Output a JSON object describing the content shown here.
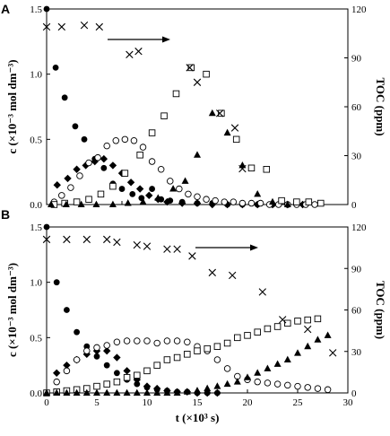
{
  "chart_data": [
    {
      "type": "scatter",
      "panel_label": "A",
      "xlim": [
        0,
        20
      ],
      "ylim": [
        0,
        1.5
      ],
      "y2lim": [
        0,
        120
      ],
      "yticks": [
        "0.0",
        "0.5",
        "1.0",
        "1.5"
      ],
      "y2ticks": [
        "0",
        "30",
        "60",
        "90",
        "120"
      ],
      "ylabel": "c (×10⁻³ mol dm⁻³)",
      "y2label": "TOC (ppm)",
      "series": [
        {
          "marker": "filled-circle",
          "axis": "left",
          "x": [
            0,
            0.6,
            1.2,
            1.9,
            2.5,
            3.2,
            3.8,
            4.4,
            5.0,
            5.7,
            6.3,
            7.0,
            7.6,
            8.2,
            9.0,
            10.0,
            11.0,
            12.0,
            13.0,
            14.0,
            15.0,
            16.0
          ],
          "y": [
            1.5,
            1.05,
            0.82,
            0.6,
            0.5,
            0.35,
            0.28,
            0.16,
            0.12,
            0.08,
            0.05,
            0.12,
            0.04,
            0.03,
            0.02,
            0.01,
            0.01,
            0,
            0,
            0,
            0,
            0
          ]
        },
        {
          "marker": "filled-diamond",
          "axis": "left",
          "x": [
            0.7,
            1.4,
            2.0,
            2.6,
            3.2,
            3.8,
            4.4,
            5.0,
            5.6,
            6.2,
            6.8,
            7.4,
            8.0,
            9.0,
            10.0,
            11.0,
            12.0,
            13.0,
            14.0,
            15.0,
            16.0,
            17.0
          ],
          "y": [
            0.15,
            0.2,
            0.27,
            0.3,
            0.33,
            0.35,
            0.3,
            0.24,
            0.17,
            0.12,
            0.07,
            0.04,
            0.02,
            0.01,
            0.01,
            0,
            0,
            0,
            0,
            0,
            0,
            0
          ]
        },
        {
          "marker": "open-circle",
          "axis": "left",
          "x": [
            0.5,
            1.0,
            1.6,
            2.2,
            2.8,
            3.4,
            4.0,
            4.6,
            5.2,
            5.8,
            6.4,
            7.0,
            7.6,
            8.2,
            8.8,
            9.4,
            10.0,
            10.6,
            11.2,
            11.8,
            12.4,
            13.0,
            13.6,
            14.2,
            14.8,
            15.4,
            16.0,
            16.6,
            17.2,
            17.8
          ],
          "y": [
            0.02,
            0.07,
            0.13,
            0.22,
            0.32,
            0.36,
            0.45,
            0.49,
            0.5,
            0.49,
            0.44,
            0.33,
            0.27,
            0.18,
            0.12,
            0.08,
            0.06,
            0.04,
            0.03,
            0.02,
            0.02,
            0.01,
            0.01,
            0.01,
            0,
            0,
            0,
            0,
            0,
            0
          ]
        },
        {
          "marker": "open-square",
          "axis": "left",
          "x": [
            0.5,
            1.2,
            2.0,
            2.8,
            3.6,
            4.4,
            5.2,
            6.2,
            7.0,
            7.8,
            8.6,
            9.6,
            10.6,
            11.6,
            12.6,
            13.6,
            14.6,
            15.6,
            16.6,
            17.4,
            18.2
          ],
          "y": [
            0,
            0.01,
            0.02,
            0.04,
            0.08,
            0.14,
            0.24,
            0.38,
            0.55,
            0.68,
            0.85,
            1.05,
            1.0,
            0.7,
            0.5,
            0.28,
            0.27,
            0.03,
            0.02,
            0.02,
            0.01
          ]
        },
        {
          "marker": "filled-triangle",
          "axis": "left",
          "x": [
            0.3,
            1.3,
            2.3,
            3.3,
            4.4,
            5.4,
            6.4,
            7.4,
            8.4,
            9.2,
            10.0,
            11.0,
            12.0,
            13.0,
            14.0,
            15.0,
            16.0
          ],
          "y": [
            0,
            0,
            0,
            0,
            0,
            0.01,
            0.02,
            0.05,
            0.12,
            0.18,
            0.38,
            0.7,
            0.55,
            0.3,
            0.08,
            0.02,
            0
          ]
        },
        {
          "marker": "cross",
          "axis": "right",
          "x": [
            0,
            1,
            2.5,
            3.5,
            5.5,
            6.1,
            9.5,
            10.0,
            11.5,
            12.5,
            13.0
          ],
          "y": [
            109,
            109,
            110,
            109,
            92,
            94,
            84,
            75,
            56,
            47,
            22
          ]
        }
      ],
      "annotation": "arrow pointing right toward TOC axis"
    },
    {
      "type": "scatter",
      "panel_label": "B",
      "xlim": [
        0,
        30
      ],
      "ylim": [
        0,
        1.5
      ],
      "y2lim": [
        0,
        120
      ],
      "xticks": [
        "0",
        "5",
        "10",
        "15",
        "20",
        "25",
        "30"
      ],
      "yticks": [
        "0.0",
        "0.5",
        "1.0",
        "1.5"
      ],
      "y2ticks": [
        "0",
        "30",
        "60",
        "90",
        "120"
      ],
      "xlabel": "t (×10³ s)",
      "ylabel": "c (×10⁻³ mol dm⁻³)",
      "y2label": "TOC (ppm)",
      "series": [
        {
          "marker": "filled-circle",
          "axis": "left",
          "x": [
            0,
            1,
            2,
            3,
            4,
            5,
            6,
            7,
            8,
            9,
            10,
            11,
            12,
            13,
            14,
            15,
            16,
            17
          ],
          "y": [
            1.5,
            1.0,
            0.75,
            0.55,
            0.42,
            0.33,
            0.25,
            0.18,
            0.12,
            0.08,
            0.05,
            0.03,
            0.02,
            0.01,
            0.01,
            0,
            0,
            0
          ]
        },
        {
          "marker": "filled-diamond",
          "axis": "left",
          "x": [
            1,
            2,
            3,
            4,
            5,
            6,
            7,
            8,
            9,
            10,
            11,
            12,
            13,
            14,
            15,
            16,
            17
          ],
          "y": [
            0.18,
            0.25,
            0.3,
            0.35,
            0.38,
            0.38,
            0.32,
            0.2,
            0.12,
            0.06,
            0.04,
            0.02,
            0.01,
            0.01,
            0,
            0,
            0
          ]
        },
        {
          "marker": "open-circle",
          "axis": "left",
          "x": [
            1,
            2,
            3,
            4,
            5,
            6,
            7,
            8,
            9,
            10,
            11,
            12,
            13,
            14,
            15,
            16,
            17,
            18,
            19,
            20,
            21,
            22,
            23,
            24,
            25,
            26,
            27,
            28
          ],
          "y": [
            0.1,
            0.2,
            0.3,
            0.38,
            0.41,
            0.43,
            0.46,
            0.47,
            0.47,
            0.47,
            0.45,
            0.47,
            0.47,
            0.46,
            0.42,
            0.38,
            0.3,
            0.22,
            0.15,
            0.12,
            0.1,
            0.09,
            0.08,
            0.07,
            0.06,
            0.05,
            0.04,
            0.03
          ]
        },
        {
          "marker": "open-square",
          "axis": "left",
          "x": [
            0,
            1,
            2,
            3,
            4,
            5,
            6,
            7,
            8,
            9,
            10,
            11,
            12,
            13,
            14,
            15,
            16,
            17,
            18,
            19,
            20,
            21,
            22,
            23,
            24,
            25,
            26,
            27
          ],
          "y": [
            0,
            0.01,
            0.02,
            0.03,
            0.04,
            0.06,
            0.08,
            0.1,
            0.14,
            0.16,
            0.2,
            0.25,
            0.3,
            0.32,
            0.35,
            0.38,
            0.4,
            0.42,
            0.45,
            0.5,
            0.52,
            0.55,
            0.58,
            0.6,
            0.63,
            0.65,
            0.66,
            0.67
          ]
        },
        {
          "marker": "filled-triangle",
          "axis": "left",
          "x": [
            0,
            1,
            2,
            3,
            4,
            5,
            6,
            7,
            8,
            9,
            10,
            11,
            12,
            13,
            14,
            15,
            16,
            17,
            18,
            19,
            20,
            21,
            22,
            23,
            24,
            25,
            26,
            27,
            28
          ],
          "y": [
            0,
            0,
            0,
            0,
            0,
            0,
            0,
            0,
            0,
            0,
            0,
            0,
            0,
            0,
            0.01,
            0.02,
            0.04,
            0.06,
            0.08,
            0.1,
            0.14,
            0.18,
            0.22,
            0.26,
            0.3,
            0.36,
            0.42,
            0.48,
            0.52
          ]
        },
        {
          "marker": "cross",
          "axis": "right",
          "x": [
            0,
            2,
            4,
            6,
            7,
            9,
            10,
            12,
            13,
            14.5,
            16.5,
            18.5,
            21.5,
            23.5,
            26,
            28.5
          ],
          "y": [
            111,
            111,
            111,
            111,
            109,
            107,
            106,
            104,
            104,
            99,
            87,
            85,
            73,
            53,
            46,
            29
          ]
        }
      ],
      "annotation": "arrow pointing right toward TOC axis"
    }
  ]
}
